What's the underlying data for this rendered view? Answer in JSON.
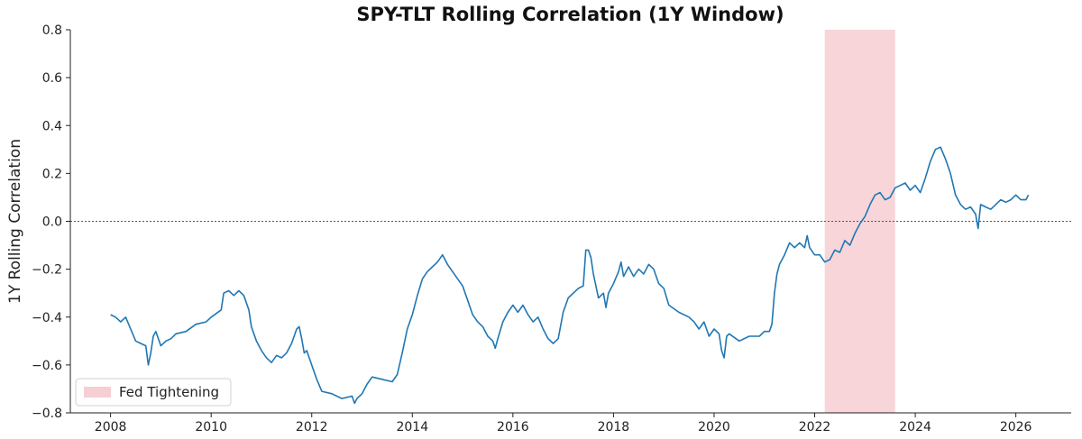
{
  "chart_data": {
    "type": "line",
    "title": "SPY-TLT Rolling Correlation (1Y Window)",
    "xlabel": "",
    "ylabel": "1Y Rolling Correlation",
    "xlim": [
      2007.2,
      2027.1
    ],
    "ylim": [
      -0.8,
      0.8
    ],
    "x_ticks": [
      "2008",
      "2010",
      "2012",
      "2014",
      "2016",
      "2018",
      "2020",
      "2022",
      "2024",
      "2026"
    ],
    "y_ticks": [
      "0.8",
      "0.6",
      "0.4",
      "0.2",
      "0.0",
      "−0.2",
      "−0.4",
      "−0.6",
      "−0.8"
    ],
    "grid": false,
    "reference_line": {
      "y": 0.0,
      "style": "dotted",
      "color": "#555555"
    },
    "shaded_regions": [
      {
        "name": "Fed Tightening",
        "x_start": 2022.2,
        "x_end": 2023.6,
        "color": "#f4c7cc"
      }
    ],
    "legend": {
      "position": "bottom-left",
      "entries": [
        "Fed Tightening"
      ]
    },
    "series": [
      {
        "color": "#1f77b4",
        "points": [
          [
            2008.0,
            -0.39
          ],
          [
            2008.1,
            -0.4
          ],
          [
            2008.2,
            -0.42
          ],
          [
            2008.3,
            -0.4
          ],
          [
            2008.4,
            -0.45
          ],
          [
            2008.5,
            -0.5
          ],
          [
            2008.6,
            -0.51
          ],
          [
            2008.7,
            -0.52
          ],
          [
            2008.75,
            -0.6
          ],
          [
            2008.8,
            -0.55
          ],
          [
            2008.85,
            -0.48
          ],
          [
            2008.9,
            -0.46
          ],
          [
            2009.0,
            -0.52
          ],
          [
            2009.1,
            -0.5
          ],
          [
            2009.2,
            -0.49
          ],
          [
            2009.3,
            -0.47
          ],
          [
            2009.5,
            -0.46
          ],
          [
            2009.7,
            -0.43
          ],
          [
            2009.9,
            -0.42
          ],
          [
            2010.0,
            -0.4
          ],
          [
            2010.2,
            -0.37
          ],
          [
            2010.25,
            -0.3
          ],
          [
            2010.35,
            -0.29
          ],
          [
            2010.45,
            -0.31
          ],
          [
            2010.55,
            -0.29
          ],
          [
            2010.65,
            -0.31
          ],
          [
            2010.75,
            -0.37
          ],
          [
            2010.8,
            -0.44
          ],
          [
            2010.9,
            -0.5
          ],
          [
            2011.0,
            -0.54
          ],
          [
            2011.1,
            -0.57
          ],
          [
            2011.2,
            -0.59
          ],
          [
            2011.3,
            -0.56
          ],
          [
            2011.4,
            -0.57
          ],
          [
            2011.5,
            -0.55
          ],
          [
            2011.6,
            -0.51
          ],
          [
            2011.7,
            -0.45
          ],
          [
            2011.75,
            -0.44
          ],
          [
            2011.8,
            -0.49
          ],
          [
            2011.85,
            -0.55
          ],
          [
            2011.9,
            -0.54
          ],
          [
            2012.0,
            -0.6
          ],
          [
            2012.1,
            -0.66
          ],
          [
            2012.2,
            -0.71
          ],
          [
            2012.4,
            -0.72
          ],
          [
            2012.6,
            -0.74
          ],
          [
            2012.8,
            -0.73
          ],
          [
            2012.85,
            -0.76
          ],
          [
            2012.9,
            -0.74
          ],
          [
            2013.0,
            -0.72
          ],
          [
            2013.1,
            -0.68
          ],
          [
            2013.2,
            -0.65
          ],
          [
            2013.4,
            -0.66
          ],
          [
            2013.6,
            -0.67
          ],
          [
            2013.7,
            -0.64
          ],
          [
            2013.8,
            -0.55
          ],
          [
            2013.9,
            -0.45
          ],
          [
            2014.0,
            -0.39
          ],
          [
            2014.1,
            -0.31
          ],
          [
            2014.2,
            -0.24
          ],
          [
            2014.3,
            -0.21
          ],
          [
            2014.4,
            -0.19
          ],
          [
            2014.5,
            -0.17
          ],
          [
            2014.6,
            -0.14
          ],
          [
            2014.7,
            -0.18
          ],
          [
            2014.8,
            -0.21
          ],
          [
            2014.9,
            -0.24
          ],
          [
            2015.0,
            -0.27
          ],
          [
            2015.1,
            -0.33
          ],
          [
            2015.2,
            -0.39
          ],
          [
            2015.3,
            -0.42
          ],
          [
            2015.4,
            -0.44
          ],
          [
            2015.5,
            -0.48
          ],
          [
            2015.6,
            -0.5
          ],
          [
            2015.65,
            -0.53
          ],
          [
            2015.7,
            -0.49
          ],
          [
            2015.8,
            -0.42
          ],
          [
            2015.9,
            -0.38
          ],
          [
            2016.0,
            -0.35
          ],
          [
            2016.1,
            -0.38
          ],
          [
            2016.2,
            -0.35
          ],
          [
            2016.3,
            -0.39
          ],
          [
            2016.4,
            -0.42
          ],
          [
            2016.5,
            -0.4
          ],
          [
            2016.6,
            -0.45
          ],
          [
            2016.7,
            -0.49
          ],
          [
            2016.8,
            -0.51
          ],
          [
            2016.9,
            -0.49
          ],
          [
            2017.0,
            -0.38
          ],
          [
            2017.1,
            -0.32
          ],
          [
            2017.2,
            -0.3
          ],
          [
            2017.3,
            -0.28
          ],
          [
            2017.4,
            -0.27
          ],
          [
            2017.45,
            -0.12
          ],
          [
            2017.5,
            -0.12
          ],
          [
            2017.55,
            -0.15
          ],
          [
            2017.6,
            -0.22
          ],
          [
            2017.7,
            -0.32
          ],
          [
            2017.8,
            -0.3
          ],
          [
            2017.85,
            -0.36
          ],
          [
            2017.9,
            -0.3
          ],
          [
            2018.0,
            -0.26
          ],
          [
            2018.1,
            -0.21
          ],
          [
            2018.15,
            -0.17
          ],
          [
            2018.2,
            -0.23
          ],
          [
            2018.3,
            -0.19
          ],
          [
            2018.4,
            -0.23
          ],
          [
            2018.5,
            -0.2
          ],
          [
            2018.6,
            -0.22
          ],
          [
            2018.7,
            -0.18
          ],
          [
            2018.8,
            -0.2
          ],
          [
            2018.9,
            -0.26
          ],
          [
            2019.0,
            -0.28
          ],
          [
            2019.1,
            -0.35
          ],
          [
            2019.3,
            -0.38
          ],
          [
            2019.5,
            -0.4
          ],
          [
            2019.6,
            -0.42
          ],
          [
            2019.7,
            -0.45
          ],
          [
            2019.8,
            -0.42
          ],
          [
            2019.9,
            -0.48
          ],
          [
            2020.0,
            -0.45
          ],
          [
            2020.1,
            -0.47
          ],
          [
            2020.15,
            -0.54
          ],
          [
            2020.2,
            -0.57
          ],
          [
            2020.25,
            -0.48
          ],
          [
            2020.3,
            -0.47
          ],
          [
            2020.5,
            -0.5
          ],
          [
            2020.7,
            -0.48
          ],
          [
            2020.9,
            -0.48
          ],
          [
            2021.0,
            -0.46
          ],
          [
            2021.1,
            -0.46
          ],
          [
            2021.15,
            -0.43
          ],
          [
            2021.2,
            -0.3
          ],
          [
            2021.25,
            -0.22
          ],
          [
            2021.3,
            -0.18
          ],
          [
            2021.4,
            -0.14
          ],
          [
            2021.5,
            -0.09
          ],
          [
            2021.6,
            -0.11
          ],
          [
            2021.7,
            -0.09
          ],
          [
            2021.8,
            -0.11
          ],
          [
            2021.85,
            -0.06
          ],
          [
            2021.9,
            -0.11
          ],
          [
            2022.0,
            -0.14
          ],
          [
            2022.1,
            -0.14
          ],
          [
            2022.2,
            -0.17
          ],
          [
            2022.3,
            -0.16
          ],
          [
            2022.4,
            -0.12
          ],
          [
            2022.5,
            -0.13
          ],
          [
            2022.6,
            -0.08
          ],
          [
            2022.7,
            -0.1
          ],
          [
            2022.8,
            -0.05
          ],
          [
            2022.9,
            -0.01
          ],
          [
            2023.0,
            0.02
          ],
          [
            2023.1,
            0.07
          ],
          [
            2023.2,
            0.11
          ],
          [
            2023.3,
            0.12
          ],
          [
            2023.4,
            0.09
          ],
          [
            2023.5,
            0.1
          ],
          [
            2023.6,
            0.14
          ],
          [
            2023.7,
            0.15
          ],
          [
            2023.8,
            0.16
          ],
          [
            2023.9,
            0.13
          ],
          [
            2024.0,
            0.15
          ],
          [
            2024.1,
            0.12
          ],
          [
            2024.2,
            0.18
          ],
          [
            2024.3,
            0.25
          ],
          [
            2024.4,
            0.3
          ],
          [
            2024.5,
            0.31
          ],
          [
            2024.6,
            0.26
          ],
          [
            2024.7,
            0.2
          ],
          [
            2024.8,
            0.11
          ],
          [
            2024.9,
            0.07
          ],
          [
            2025.0,
            0.05
          ],
          [
            2025.1,
            0.06
          ],
          [
            2025.2,
            0.03
          ],
          [
            2025.25,
            -0.03
          ],
          [
            2025.3,
            0.07
          ],
          [
            2025.4,
            0.06
          ],
          [
            2025.5,
            0.05
          ],
          [
            2025.6,
            0.07
          ],
          [
            2025.7,
            0.09
          ],
          [
            2025.8,
            0.08
          ],
          [
            2025.9,
            0.09
          ],
          [
            2026.0,
            0.11
          ],
          [
            2026.1,
            0.09
          ],
          [
            2026.2,
            0.09
          ],
          [
            2026.25,
            0.11
          ]
        ]
      }
    ]
  }
}
